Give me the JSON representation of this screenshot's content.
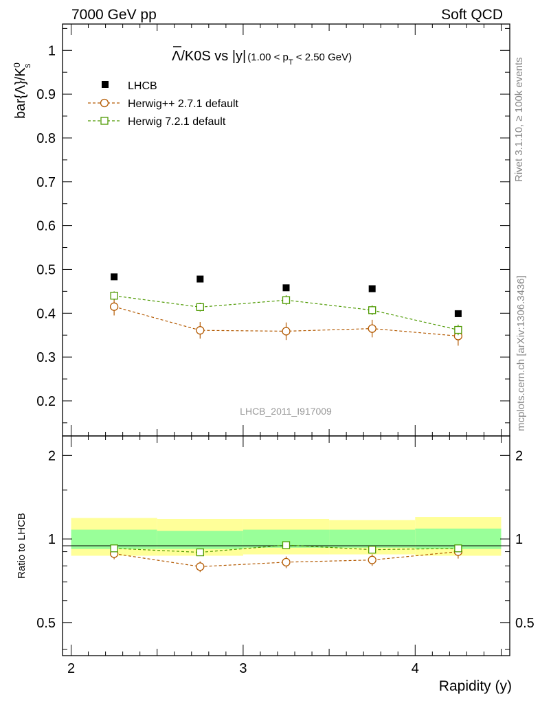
{
  "header": {
    "left": "7000 GeV pp",
    "right": "Soft QCD"
  },
  "side_labels": {
    "rivet": "Rivet 3.1.10, ≥ 100k events",
    "mcplots": "mcplots.cern.ch [arXiv:1306.3436]"
  },
  "title": {
    "lead": "Λ",
    "after_lead": "/K0S vs |y|",
    "range_open": "(1.00 < p",
    "range_sub": "T",
    "range_close": " < 2.50 GeV)"
  },
  "watermark": "LHCB_2011_I917009",
  "colors": {
    "data": "#000000",
    "herwig_pp": "#b35900",
    "herwig7": "#4d9900",
    "band_inner": "#99ff99",
    "band_outer": "#ffff99"
  },
  "chart_data": [
    {
      "type": "scatter",
      "ylabel_main": "bar{Λ}/K",
      "ylabel_sup": "0",
      "ylabel_sub": "s",
      "xlim": [
        1.95,
        4.55
      ],
      "ylim": [
        0.12,
        1.06
      ],
      "y_ticks": [
        0.2,
        0.3,
        0.4,
        0.5,
        0.6,
        0.7,
        0.8,
        0.9,
        1
      ],
      "y_tick_labels": [
        "0.2",
        "0.3",
        "0.4",
        "0.5",
        "0.6",
        "0.7",
        "0.8",
        "0.9",
        "1"
      ],
      "x_bins": [
        [
          2.0,
          2.5
        ],
        [
          2.5,
          3.0
        ],
        [
          3.0,
          3.5
        ],
        [
          3.5,
          4.0
        ],
        [
          4.0,
          4.5
        ]
      ],
      "series": [
        {
          "name": "LHCB",
          "marker": "filled-square",
          "x": [
            2.25,
            2.75,
            3.25,
            3.75,
            4.25
          ],
          "y": [
            0.483,
            0.478,
            0.458,
            0.456,
            0.399
          ],
          "err": [
            0.004,
            0.004,
            0.004,
            0.004,
            0.004
          ]
        },
        {
          "name": "Herwig++ 2.7.1 default",
          "marker": "open-circle",
          "x": [
            2.25,
            2.75,
            3.25,
            3.75,
            4.25
          ],
          "y": [
            0.415,
            0.361,
            0.359,
            0.365,
            0.348
          ],
          "err": [
            0.02,
            0.019,
            0.02,
            0.02,
            0.022
          ]
        },
        {
          "name": "Herwig 7.2.1 default",
          "marker": "open-square",
          "x": [
            2.25,
            2.75,
            3.25,
            3.75,
            4.25
          ],
          "y": [
            0.44,
            0.414,
            0.43,
            0.407,
            0.362
          ],
          "err": [
            0.01,
            0.01,
            0.011,
            0.011,
            0.012
          ]
        }
      ]
    },
    {
      "type": "scatter",
      "ylabel": "Ratio to LHCB",
      "xlabel": "Rapidity (y)",
      "ylim": [
        0.38,
        2.35
      ],
      "y_scale": "log",
      "y_ticks": [
        0.5,
        1,
        2
      ],
      "y_tick_labels": [
        "0.5",
        "1",
        "2"
      ],
      "x_ticks": [
        2,
        3,
        4
      ],
      "x_tick_labels": [
        "2",
        "3",
        "4"
      ],
      "band_inner": [
        [
          0.92,
          1.08
        ],
        [
          0.92,
          1.07
        ],
        [
          0.93,
          1.08
        ],
        [
          0.93,
          1.08
        ],
        [
          0.92,
          1.09
        ]
      ],
      "band_outer": [
        [
          0.87,
          1.19
        ],
        [
          0.87,
          1.18
        ],
        [
          0.88,
          1.18
        ],
        [
          0.88,
          1.17
        ],
        [
          0.87,
          1.2
        ]
      ],
      "series": [
        {
          "name": "Herwig++ 2.7.1 default",
          "x": [
            2.25,
            2.75,
            3.25,
            3.75,
            4.25
          ],
          "y": [
            0.885,
            0.795,
            0.825,
            0.84,
            0.9
          ],
          "err": [
            0.04,
            0.035,
            0.04,
            0.04,
            0.05
          ]
        },
        {
          "name": "Herwig 7.2.1 default",
          "x": [
            2.25,
            2.75,
            3.25,
            3.75,
            4.25
          ],
          "y": [
            0.925,
            0.895,
            0.95,
            0.915,
            0.925
          ],
          "err": [
            0.02,
            0.02,
            0.02,
            0.02,
            0.02
          ]
        }
      ]
    }
  ]
}
